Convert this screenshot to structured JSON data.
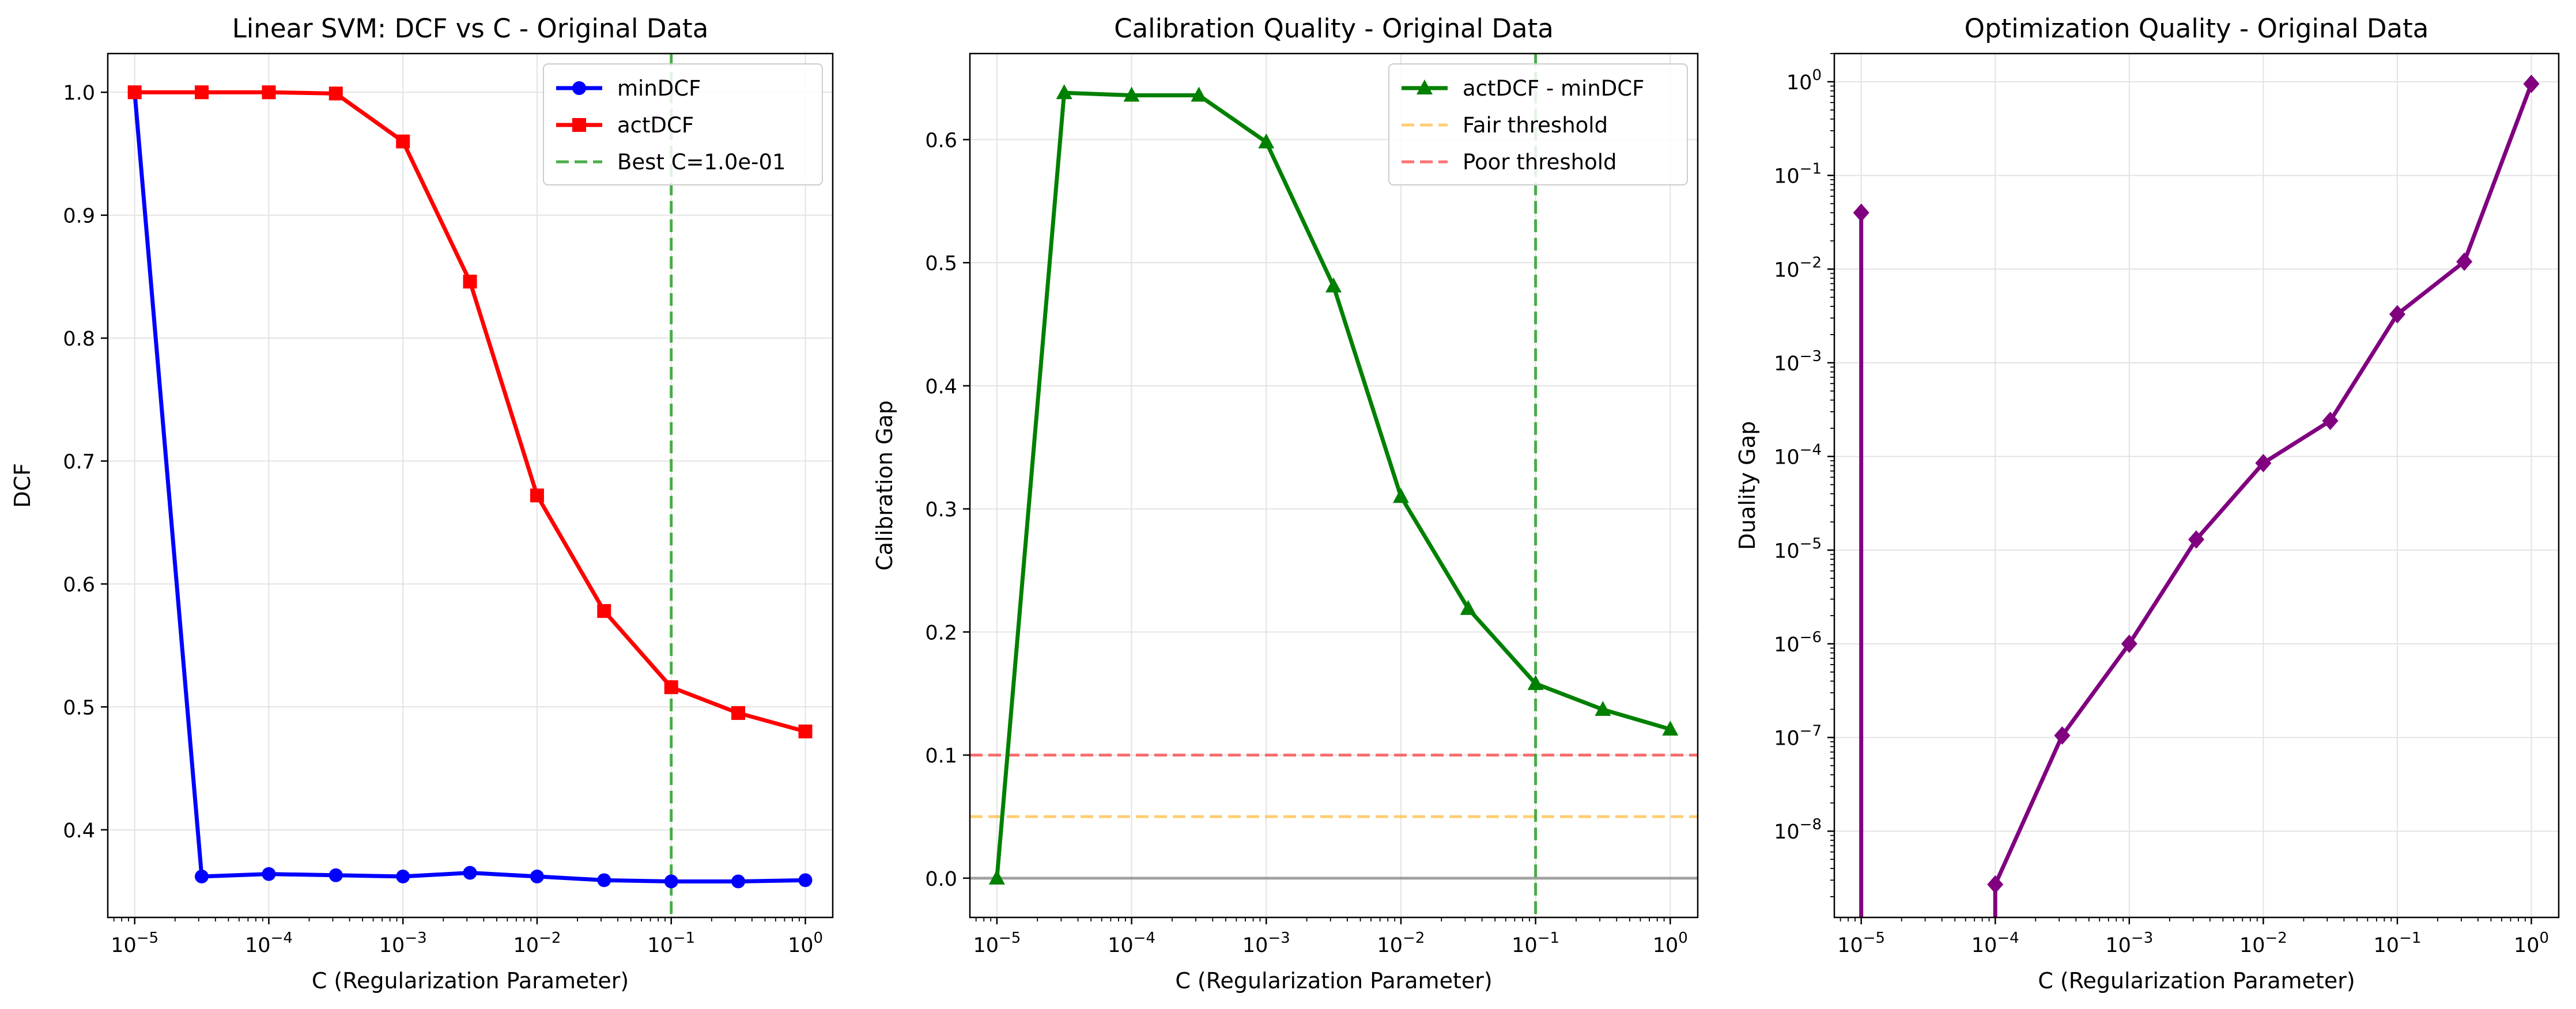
{
  "chart_data": [
    {
      "type": "line",
      "title": "Linear SVM: DCF vs C - Original Data",
      "xlabel": "C (Regularization Parameter)",
      "ylabel": "DCF",
      "xscale": "log",
      "yscale": "linear",
      "xlim": [
        6.3e-06,
        1.6
      ],
      "ylim": [
        0.3287,
        1.0315
      ],
      "xticks": [
        1e-05,
        0.0001,
        0.001,
        0.01,
        0.1,
        1
      ],
      "xtick_labels": [
        "10^-5",
        "10^-4",
        "10^-3",
        "10^-2",
        "10^-1",
        "10^0"
      ],
      "yticks": [
        0.4,
        0.5,
        0.6,
        0.7,
        0.8,
        0.9,
        1.0
      ],
      "ytick_labels": [
        "0.4",
        "0.5",
        "0.6",
        "0.7",
        "0.8",
        "0.9",
        "1.0"
      ],
      "grid": true,
      "legend_position": "top-right",
      "x": [
        1e-05,
        3.16e-05,
        0.0001,
        0.000316,
        0.001,
        0.00316,
        0.01,
        0.0316,
        0.1,
        0.316,
        1
      ],
      "series": [
        {
          "name": "minDCF",
          "color": "#0000ff",
          "marker": "circle",
          "values": [
            1.0,
            0.362,
            0.364,
            0.363,
            0.362,
            0.365,
            0.362,
            0.359,
            0.358,
            0.358,
            0.359
          ]
        },
        {
          "name": "actDCF",
          "color": "#ff0000",
          "marker": "square",
          "values": [
            1.0,
            1.0,
            1.0,
            0.999,
            0.96,
            0.846,
            0.672,
            0.578,
            0.516,
            0.495,
            0.48
          ]
        }
      ],
      "vlines": [
        {
          "x": 0.1,
          "label": "Best C=1.0e-01",
          "color": "#2ca02c",
          "style": "dashed"
        }
      ],
      "hlines": []
    },
    {
      "type": "line",
      "title": "Calibration Quality - Original Data",
      "xlabel": "C (Regularization Parameter)",
      "ylabel": "Calibration Gap",
      "xscale": "log",
      "yscale": "linear",
      "xlim": [
        6.3e-06,
        1.6
      ],
      "ylim": [
        -0.0319,
        0.6699
      ],
      "xticks": [
        1e-05,
        0.0001,
        0.001,
        0.01,
        0.1,
        1
      ],
      "xtick_labels": [
        "10^-5",
        "10^-4",
        "10^-3",
        "10^-2",
        "10^-1",
        "10^0"
      ],
      "yticks": [
        0.0,
        0.1,
        0.2,
        0.3,
        0.4,
        0.5,
        0.6
      ],
      "ytick_labels": [
        "0.0",
        "0.1",
        "0.2",
        "0.3",
        "0.4",
        "0.5",
        "0.6"
      ],
      "grid": true,
      "legend_position": "top-right",
      "x": [
        1e-05,
        3.16e-05,
        0.0001,
        0.000316,
        0.001,
        0.00316,
        0.01,
        0.0316,
        0.1,
        0.316,
        1
      ],
      "series": [
        {
          "name": "actDCF - minDCF",
          "color": "#008000",
          "marker": "triangle",
          "values": [
            0.0,
            0.638,
            0.636,
            0.636,
            0.598,
            0.481,
            0.31,
            0.219,
            0.158,
            0.137,
            0.121
          ]
        }
      ],
      "vlines": [
        {
          "x": 0.1,
          "label": "",
          "color": "#2ca02c",
          "style": "dashed"
        }
      ],
      "hlines": [
        {
          "y": 0.05,
          "label": "Fair threshold",
          "color": "#ffa500",
          "style": "dashed"
        },
        {
          "y": 0.1,
          "label": "Poor threshold",
          "color": "#ff0000",
          "style": "dashed"
        },
        {
          "y": 0.0,
          "label": "",
          "color": "#808080",
          "style": "solid"
        }
      ]
    },
    {
      "type": "line",
      "title": "Optimization Quality - Original Data",
      "xlabel": "C (Regularization Parameter)",
      "ylabel": "Duality Gap",
      "xscale": "log",
      "yscale": "log",
      "xlim": [
        6.3e-06,
        1.6
      ],
      "ylim": [
        1.2e-09,
        2.0
      ],
      "xticks": [
        1e-05,
        0.0001,
        0.001,
        0.01,
        0.1,
        1
      ],
      "xtick_labels": [
        "10^-5",
        "10^-4",
        "10^-3",
        "10^-2",
        "10^-1",
        "10^0"
      ],
      "yticks": [
        1e-08,
        1e-07,
        1e-06,
        1e-05,
        0.0001,
        0.001,
        0.01,
        0.1,
        1
      ],
      "ytick_labels": [
        "10^-8",
        "10^-7",
        "10^-6",
        "10^-5",
        "10^-4",
        "10^-3",
        "10^-2",
        "10^-1",
        "10^0"
      ],
      "grid": true,
      "legend_position": "none",
      "x": [
        1e-05,
        3.16e-05,
        0.0001,
        0.000316,
        0.001,
        0.00316,
        0.01,
        0.0316,
        0.1,
        0.316,
        1
      ],
      "series": [
        {
          "name": "",
          "color": "#800080",
          "marker": "diamond",
          "values": [
            0.04,
            null,
            2.7e-09,
            1.05e-07,
            1e-06,
            1.3e-05,
            8.5e-05,
            0.00024,
            0.0033,
            0.012,
            0.95
          ]
        }
      ],
      "vlines": [],
      "hlines": []
    }
  ]
}
